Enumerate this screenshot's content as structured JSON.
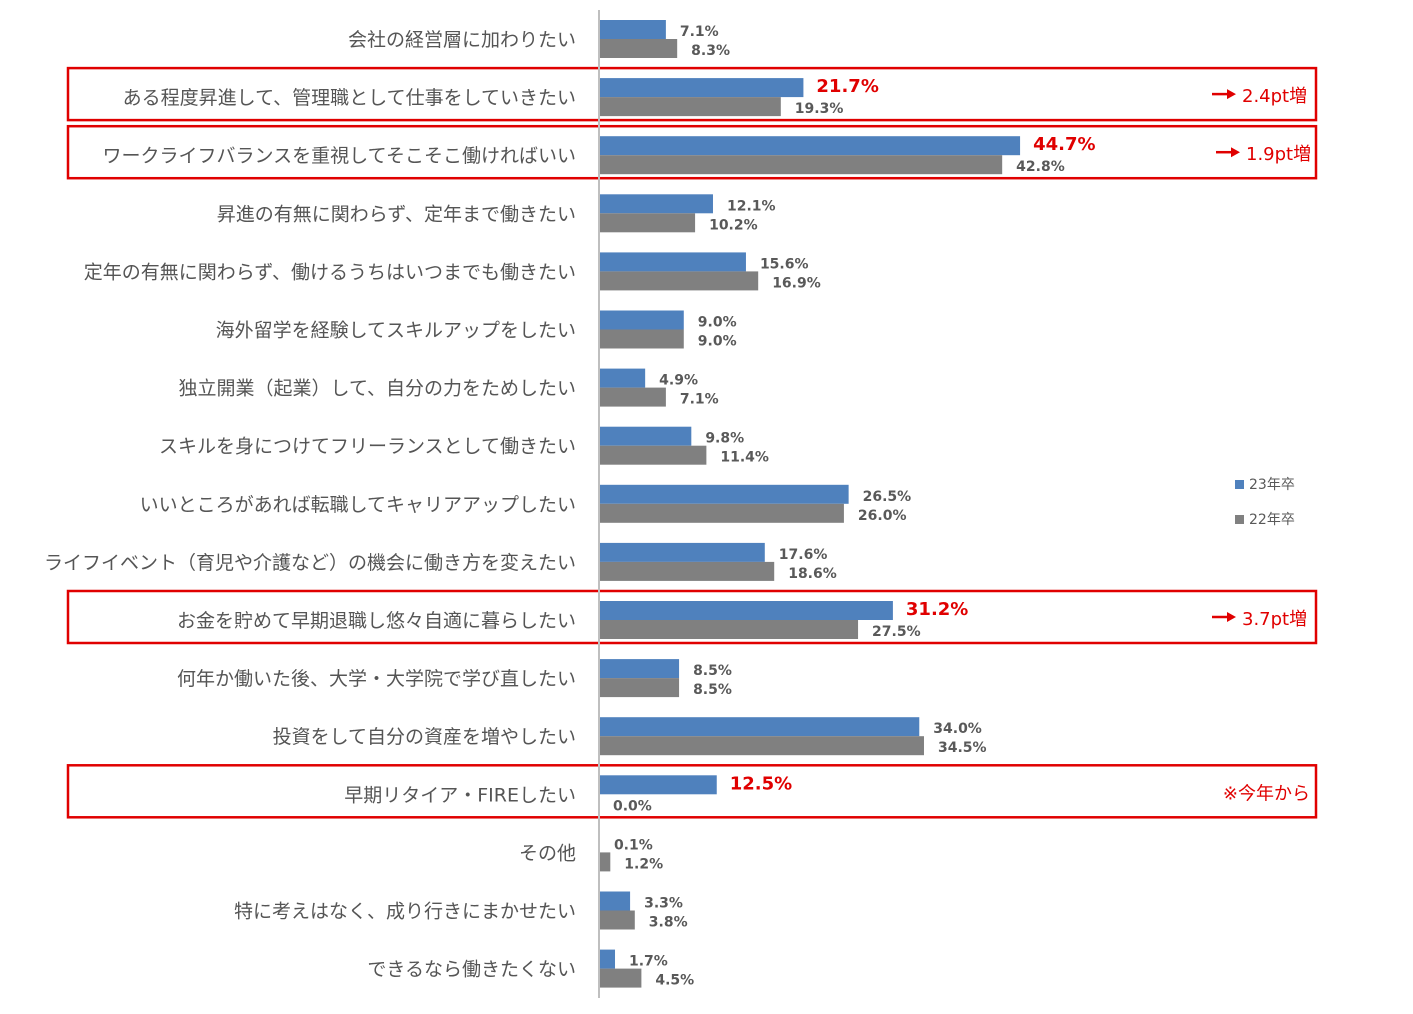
{
  "chart_data": {
    "type": "bar",
    "orientation": "horizontal",
    "xlim": [
      0,
      50
    ],
    "grid": false,
    "legend_position": "right",
    "series": [
      {
        "name": "23年卒",
        "color": "#4F81BD"
      },
      {
        "name": "22年卒",
        "color": "#808080"
      }
    ],
    "highlight_color": "#E00000",
    "categories": [
      {
        "label": "会社の経営層に加わりたい",
        "values": [
          7.1,
          8.3
        ],
        "labels": [
          "7.1%",
          "8.3%"
        ],
        "highlight": false
      },
      {
        "label": "ある程度昇進して、管理職として仕事をしていきたい",
        "values": [
          21.7,
          19.3
        ],
        "labels": [
          "21.7%",
          "19.3%"
        ],
        "highlight": true,
        "note": "2.4pt増",
        "note_arrow": true
      },
      {
        "label": "ワークライフバランスを重視してそこそこ働ければいい",
        "values": [
          44.7,
          42.8
        ],
        "labels": [
          "44.7%",
          "42.8%"
        ],
        "highlight": true,
        "note": "1.9pt増",
        "note_arrow": true
      },
      {
        "label": "昇進の有無に関わらず、定年まで働きたい",
        "values": [
          12.1,
          10.2
        ],
        "labels": [
          "12.1%",
          "10.2%"
        ],
        "highlight": false
      },
      {
        "label": "定年の有無に関わらず、働けるうちはいつまでも働きたい",
        "values": [
          15.6,
          16.9
        ],
        "labels": [
          "15.6%",
          "16.9%"
        ],
        "highlight": false
      },
      {
        "label": "海外留学を経験してスキルアップをしたい",
        "values": [
          9.0,
          9.0
        ],
        "labels": [
          "9.0%",
          "9.0%"
        ],
        "highlight": false
      },
      {
        "label": "独立開業（起業）して、自分の力をためしたい",
        "values": [
          4.9,
          7.1
        ],
        "labels": [
          "4.9%",
          "7.1%"
        ],
        "highlight": false
      },
      {
        "label": "スキルを身につけてフリーランスとして働きたい",
        "values": [
          9.8,
          11.4
        ],
        "labels": [
          "9.8%",
          "11.4%"
        ],
        "highlight": false
      },
      {
        "label": "いいところがあれば転職してキャリアアップしたい",
        "values": [
          26.5,
          26.0
        ],
        "labels": [
          "26.5%",
          "26.0%"
        ],
        "highlight": false
      },
      {
        "label": "ライフイベント（育児や介護など）の機会に働き方を変えたい",
        "values": [
          17.6,
          18.6
        ],
        "labels": [
          "17.6%",
          "18.6%"
        ],
        "highlight": false
      },
      {
        "label": "お金を貯めて早期退職し悠々自適に暮らしたい",
        "values": [
          31.2,
          27.5
        ],
        "labels": [
          "31.2%",
          "27.5%"
        ],
        "highlight": true,
        "note": "3.7pt増",
        "note_arrow": true
      },
      {
        "label": "何年か働いた後、大学・大学院で学び直したい",
        "values": [
          8.5,
          8.5
        ],
        "labels": [
          "8.5%",
          "8.5%"
        ],
        "highlight": false
      },
      {
        "label": "投資をして自分の資産を増やしたい",
        "values": [
          34.0,
          34.5
        ],
        "labels": [
          "34.0%",
          "34.5%"
        ],
        "highlight": false
      },
      {
        "label": "早期リタイア・FIREしたい",
        "values": [
          12.5,
          0.0
        ],
        "labels": [
          "12.5%",
          "0.0%"
        ],
        "highlight": true,
        "note": "※今年から",
        "note_arrow": false
      },
      {
        "label": "その他",
        "values": [
          0.1,
          1.2
        ],
        "labels": [
          "0.1%",
          "1.2%"
        ],
        "highlight": false
      },
      {
        "label": "特に考えはなく、成り行きにまかせたい",
        "values": [
          3.3,
          3.8
        ],
        "labels": [
          "3.3%",
          "3.8%"
        ],
        "highlight": false
      },
      {
        "label": "できるなら働きたくない",
        "values": [
          1.7,
          4.5
        ],
        "labels": [
          "1.7%",
          "4.5%"
        ],
        "highlight": false
      }
    ]
  }
}
